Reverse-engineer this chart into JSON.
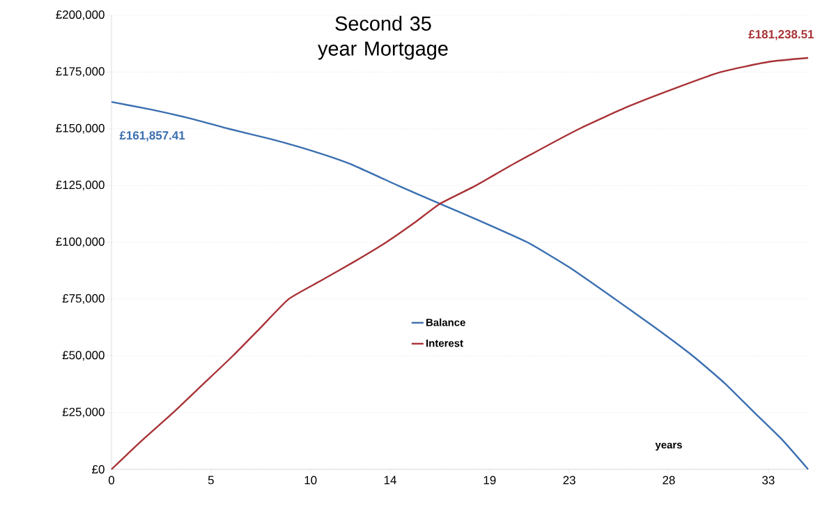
{
  "chart_data": {
    "type": "line",
    "title": "Second 35 year Mortgage",
    "xlabel": "years",
    "series": [
      {
        "name": "Balance",
        "color": "#3a6fb0",
        "x": [
          0,
          2,
          4,
          5.9,
          8,
          10,
          12,
          14.4,
          16.5,
          18.5,
          20.9,
          23,
          25.3,
          27.3,
          29.2,
          30.8,
          32.3,
          33.7,
          35
        ],
        "values": [
          161857.41,
          158500,
          154500,
          150000,
          145500,
          140500,
          134500,
          125000,
          117000,
          109500,
          100000,
          89000,
          75000,
          62500,
          50000,
          38000,
          25000,
          13000,
          0
        ]
      },
      {
        "name": "Interest",
        "color": "#a83236",
        "x": [
          0,
          1.5,
          3.1,
          4.6,
          6.1,
          7.5,
          8.9,
          10.5,
          12.2,
          13.8,
          15.2,
          16.5,
          18.3,
          20.3,
          23.5,
          26,
          28.5,
          30.6,
          33,
          35
        ],
        "values": [
          0,
          12500,
          25000,
          37500,
          50000,
          62500,
          75000,
          83000,
          91500,
          100000,
          108500,
          117000,
          125000,
          135000,
          150000,
          160000,
          168500,
          175000,
          179500,
          181238.51
        ]
      }
    ],
    "xlim": [
      0,
      35
    ],
    "xticks": [
      0,
      5,
      10,
      14,
      19,
      23,
      28,
      33
    ],
    "ylim": [
      0,
      200000
    ],
    "yticks": [
      {
        "value": 0,
        "label": "£0"
      },
      {
        "value": 25000,
        "label": "£25,000"
      },
      {
        "value": 50000,
        "label": "£50,000"
      },
      {
        "value": 75000,
        "label": "£75,000"
      },
      {
        "value": 100000,
        "label": "£100,000"
      },
      {
        "value": 125000,
        "label": "£125,000"
      },
      {
        "value": 150000,
        "label": "£150,000"
      },
      {
        "value": 175000,
        "label": "£175,000"
      },
      {
        "value": 200000,
        "label": "£200,000"
      }
    ],
    "annotations": [
      {
        "text": "£161,857.41",
        "x": 0,
        "y": 161857.41
      },
      {
        "text": "£181,238.51",
        "x": 35,
        "y": 181238.51
      }
    ],
    "grid": "y",
    "legend": "center",
    "marker": "none",
    "line_style": "solid"
  }
}
